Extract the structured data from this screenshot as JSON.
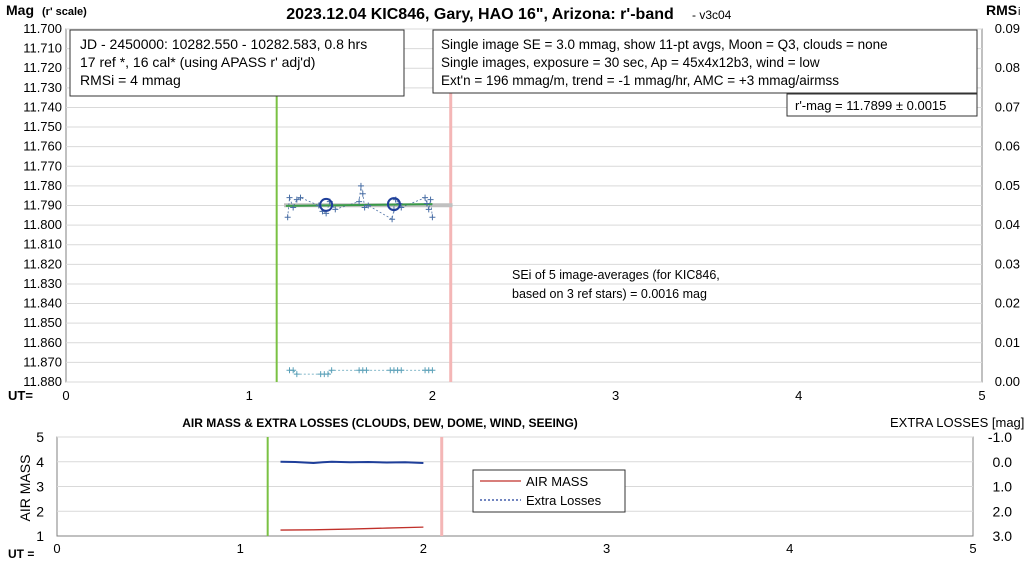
{
  "title": "2023.12.04 KIC846, Gary, HAO 16\", Arizona: r'-band",
  "version": "- v3c04",
  "top_chart": {
    "ylabel_main": "Mag",
    "ylabel_sub": "(r' scale)",
    "y2label": "RMS",
    "y2label_tail": "i",
    "xlabel": "UT=",
    "ylim": [
      11.88,
      11.7
    ],
    "y_ticks": [
      "11.700",
      "11.710",
      "11.720",
      "11.730",
      "11.740",
      "11.750",
      "11.760",
      "11.770",
      "11.780",
      "11.790",
      "11.800",
      "11.810",
      "11.820",
      "11.830",
      "11.840",
      "11.850",
      "11.860",
      "11.870",
      "11.880"
    ],
    "y2_ticks": [
      "0.09",
      "0.08",
      "0.07",
      "0.06",
      "0.05",
      "0.04",
      "0.03",
      "0.02",
      "0.01",
      "0.00"
    ],
    "x_ticks": [
      "0",
      "1",
      "2",
      "3",
      "4",
      "5"
    ],
    "info_left": [
      "JD - 2450000: 10282.550 - 10282.583, 0.8 hrs",
      "17 ref *, 16 cal* (using APASS r' adj'd)",
      "RMSi = 4 mmag"
    ],
    "info_right": [
      "Single image SE = 3.0 mmag, show  11-pt avgs, Moon = Q3, clouds = none",
      "Single images, exposure = 30 sec, Ap = 45x4x12b3, wind = low",
      "Ext'n = 196 mmag/m, trend = -1  mmag/hr, AMC = +3 mmag/airmss"
    ],
    "rmag_box": "r'-mag = 11.7899 ± 0.0015",
    "sei_note": [
      "SEi of 5 image-averages (for KIC846,",
      "based on 3 ref stars) = 0.0016 mag"
    ]
  },
  "bottom_chart": {
    "title": "AIR MASS & EXTRA LOSSES (CLOUDS, DEW, DOME, WIND, SEEING)",
    "ylabel": "AIR MASS",
    "y2label": "EXTRA LOSSES [mag]",
    "xlabel": "UT =",
    "y_ticks": [
      "5",
      "4",
      "3",
      "2",
      "1"
    ],
    "y2_ticks": [
      "-1.0",
      "0.0",
      "1.0",
      "2.0",
      "3.0"
    ],
    "x_ticks": [
      "0",
      "1",
      "2",
      "3",
      "4",
      "5"
    ],
    "legend": [
      "AIR MASS",
      "Extra Losses"
    ]
  },
  "colors": {
    "green_line": "#7ac143",
    "pink_line": "#f4b6b6",
    "data_points": "#4a6fa5",
    "circles": "#1f3f9a",
    "trend": "#3a9a48",
    "gray_band": "#c0c0c0",
    "rms_points": "#5aa0b8",
    "airmass": "#c0302a",
    "extra_losses": "#1f3f9a"
  },
  "chart_data": [
    {
      "type": "scatter",
      "title": "2023.12.04 KIC846, Gary, HAO 16\", Arizona: r'-band",
      "xlabel": "UT=",
      "ylabel": "Mag (r' scale)",
      "xlim": [
        0,
        5
      ],
      "ylim": [
        11.88,
        11.7
      ],
      "y2lim": [
        0.0,
        0.09
      ],
      "green_marker_ut": 1.15,
      "pink_marker_ut": 2.1,
      "series": [
        {
          "name": "single images",
          "x": [
            1.21,
            1.22,
            1.24,
            1.26,
            1.28,
            1.38,
            1.4,
            1.42,
            1.44,
            1.47,
            1.6,
            1.61,
            1.62,
            1.63,
            1.65,
            1.78,
            1.79,
            1.8,
            1.82,
            1.83,
            1.96,
            1.97,
            1.98,
            1.99,
            2.0
          ],
          "y": [
            11.796,
            11.786,
            11.791,
            11.787,
            11.786,
            11.79,
            11.793,
            11.794,
            11.788,
            11.792,
            11.788,
            11.78,
            11.784,
            11.791,
            11.79,
            11.797,
            11.792,
            11.787,
            11.789,
            11.791,
            11.786,
            11.789,
            11.792,
            11.787,
            11.796
          ]
        },
        {
          "name": "image averages",
          "x": [
            1.42,
            1.79
          ],
          "y": [
            11.7897,
            11.7893
          ]
        },
        {
          "name": "trend",
          "x": [
            1.2,
            2.0
          ],
          "y": [
            11.7902,
            11.7893
          ]
        },
        {
          "name": "RMS",
          "x": [
            1.22,
            1.24,
            1.26,
            1.39,
            1.41,
            1.43,
            1.45,
            1.6,
            1.62,
            1.64,
            1.77,
            1.79,
            1.81,
            1.83,
            1.96,
            1.98,
            2.0
          ],
          "y": [
            0.003,
            0.003,
            0.002,
            0.002,
            0.002,
            0.002,
            0.003,
            0.003,
            0.003,
            0.003,
            0.003,
            0.003,
            0.003,
            0.003,
            0.003,
            0.003,
            0.003
          ]
        }
      ]
    },
    {
      "type": "line",
      "title": "AIR MASS & EXTRA LOSSES (CLOUDS, DEW, DOME, WIND, SEEING)",
      "xlabel": "UT =",
      "ylabel": "AIR MASS",
      "y2label": "EXTRA LOSSES [mag]",
      "xlim": [
        0,
        5
      ],
      "ylim": [
        1,
        5
      ],
      "y2lim": [
        3.0,
        -1.0
      ],
      "green_marker_ut": 1.15,
      "pink_marker_ut": 2.1,
      "series": [
        {
          "name": "AIR MASS",
          "x": [
            1.22,
            1.4,
            1.6,
            1.8,
            2.0
          ],
          "y": [
            1.24,
            1.25,
            1.28,
            1.32,
            1.36
          ]
        },
        {
          "name": "Extra Losses",
          "x": [
            1.22,
            1.3,
            1.4,
            1.45,
            1.5,
            1.6,
            1.7,
            1.8,
            1.9,
            2.0
          ],
          "y": [
            0.0,
            0.01,
            0.05,
            0.02,
            0.0,
            0.02,
            0.01,
            0.03,
            0.02,
            0.05
          ]
        }
      ]
    }
  ]
}
